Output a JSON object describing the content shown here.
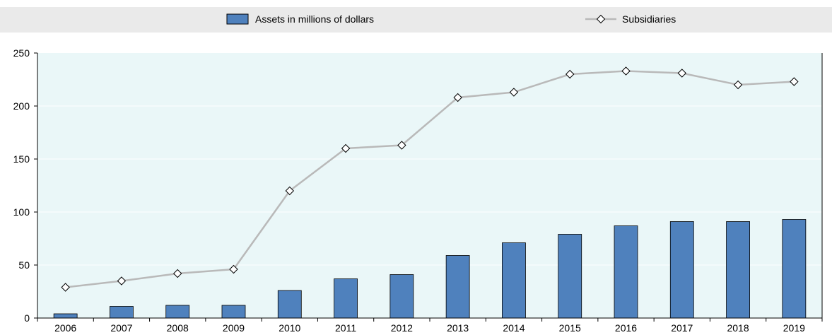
{
  "chart_data": {
    "type": "bar",
    "categories": [
      "2006",
      "2007",
      "2008",
      "2009",
      "2010",
      "2011",
      "2012",
      "2013",
      "2014",
      "2015",
      "2016",
      "2017",
      "2018",
      "2019"
    ],
    "series": [
      {
        "name": "Assets in millions of dollars",
        "kind": "bar",
        "color": "#4f81bd",
        "values": [
          4,
          11,
          12,
          12,
          26,
          37,
          41,
          59,
          71,
          79,
          87,
          91,
          91,
          93
        ]
      },
      {
        "name": "Subsidiaries",
        "kind": "line",
        "color": "#b9b9b9",
        "marker": "diamond",
        "values": [
          29,
          35,
          42,
          46,
          120,
          160,
          163,
          208,
          213,
          230,
          233,
          231,
          220,
          223
        ]
      }
    ],
    "ylim": [
      0,
      250
    ],
    "yticks": [
      "0",
      "50",
      "100",
      "150",
      "200",
      "250"
    ],
    "title": "",
    "xlabel": "",
    "ylabel": "",
    "legend_position": "top",
    "grid": false,
    "colors": {
      "plot_background": "#eaf7f8",
      "legend_background": "#eaeaea"
    }
  }
}
